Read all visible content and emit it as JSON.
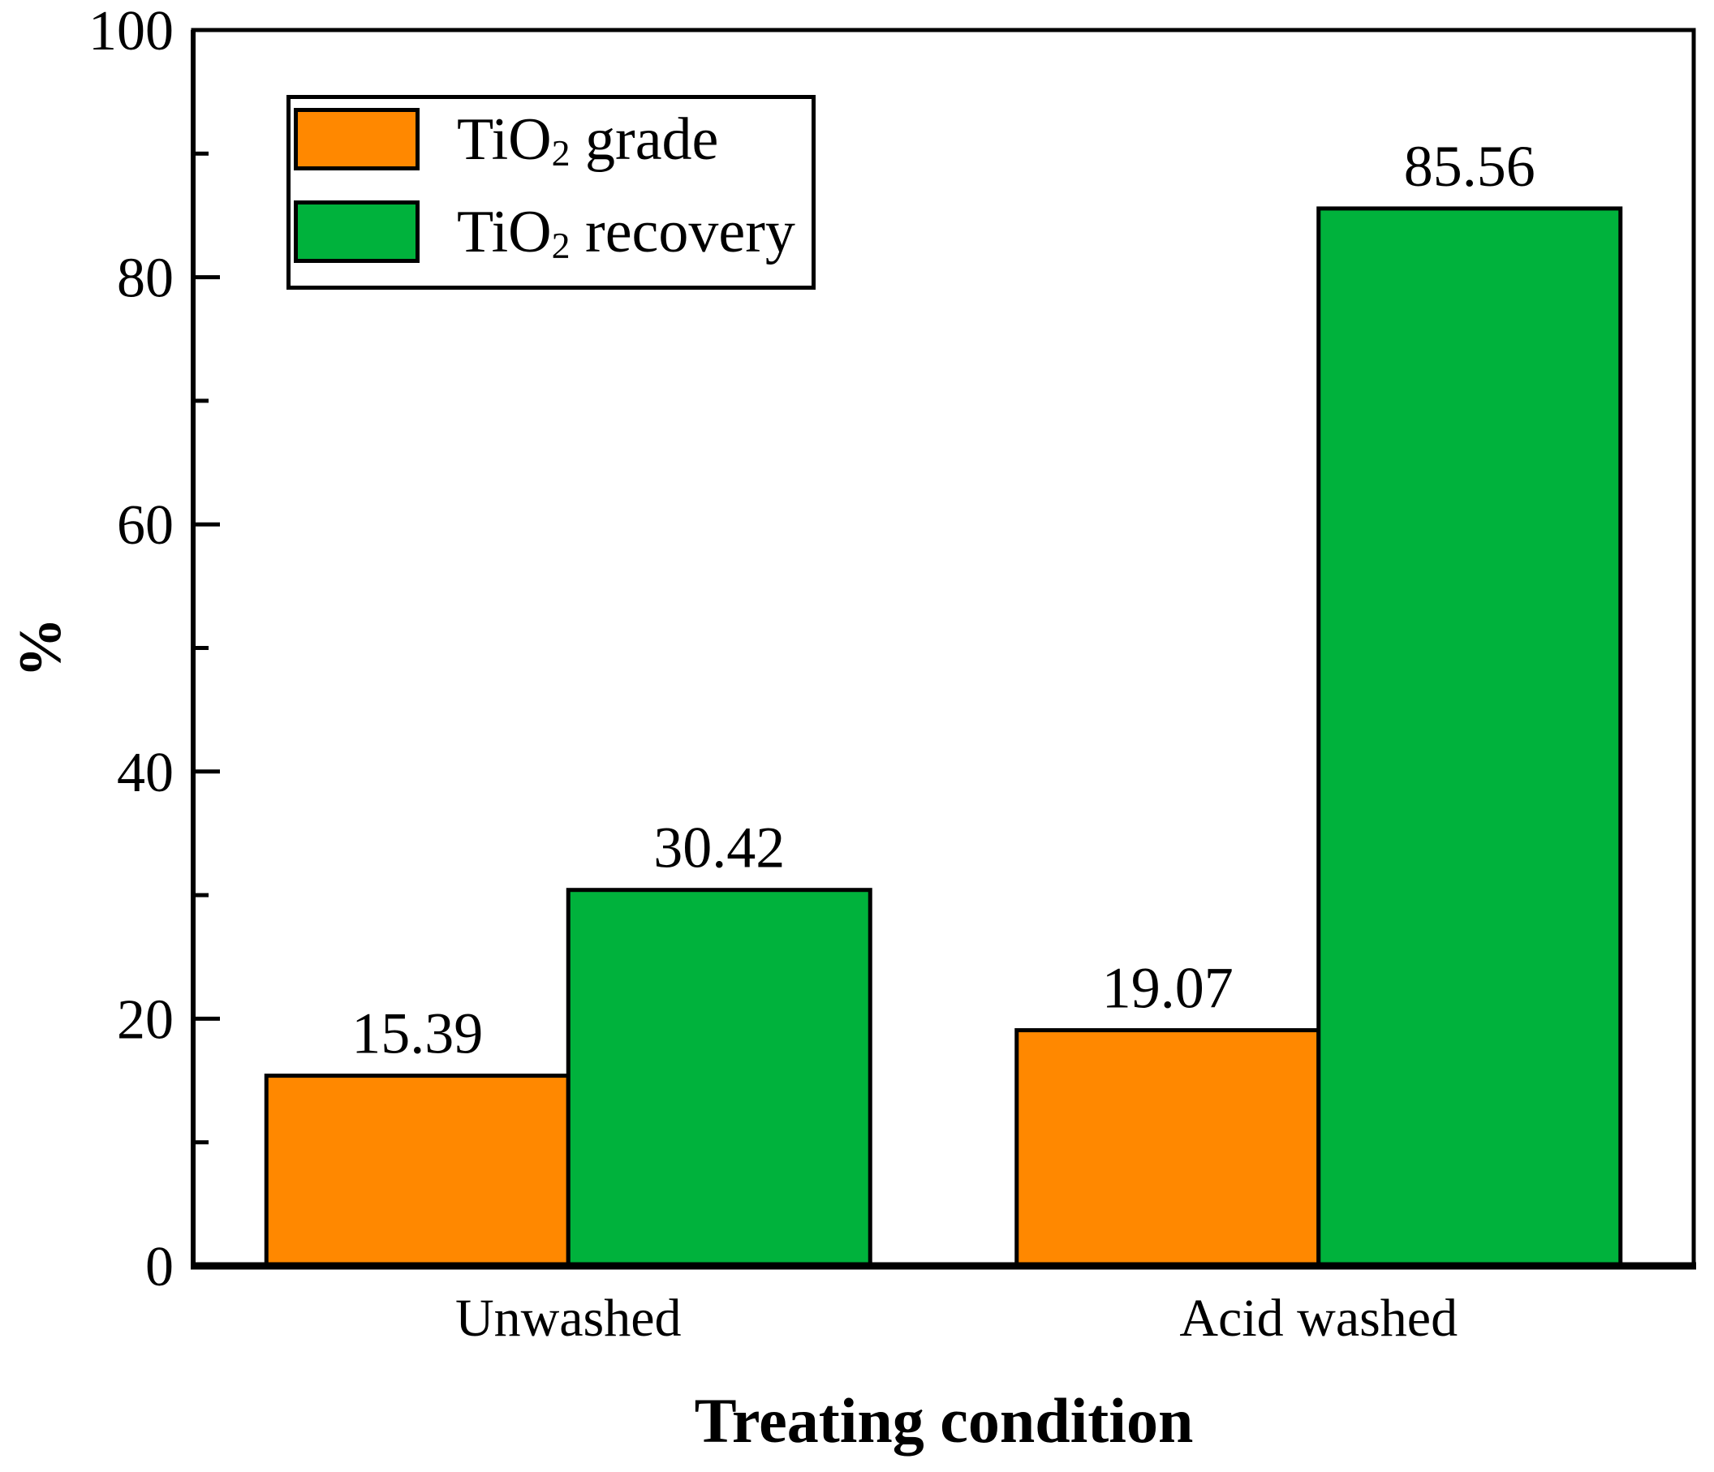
{
  "chart_data": {
    "type": "bar",
    "categories": [
      "Unwashed",
      "Acid washed"
    ],
    "series": [
      {
        "name": "TiO2 grade",
        "color": "#FF8800",
        "edge_color": "#000000",
        "values": [
          15.39,
          19.07
        ]
      },
      {
        "name": "TiO2 recovery",
        "color": "#00B23C",
        "edge_color": "#000000",
        "values": [
          30.42,
          85.56
        ]
      }
    ],
    "value_labels": [
      [
        "15.39",
        "19.07"
      ],
      [
        "30.42",
        "85.56"
      ]
    ],
    "value_label_decimals": 2,
    "xlabel": "Treating condition",
    "ylabel": "%",
    "ylim": [
      0,
      100
    ],
    "yticks_major": [
      0,
      20,
      40,
      60,
      80,
      100
    ],
    "ytick_labels": [
      "0",
      "20",
      "40",
      "60",
      "80",
      "100"
    ],
    "yticks_minor": [
      10,
      30,
      50,
      70,
      90
    ],
    "grid": false,
    "legend_position": "top-left",
    "axis_color": "#000000",
    "background": "#FFFFFF"
  },
  "legend": {
    "items": [
      {
        "prefix": "TiO",
        "sub": "2",
        "suffix": " grade"
      },
      {
        "prefix": "TiO",
        "sub": "2",
        "suffix": " recovery"
      }
    ]
  }
}
